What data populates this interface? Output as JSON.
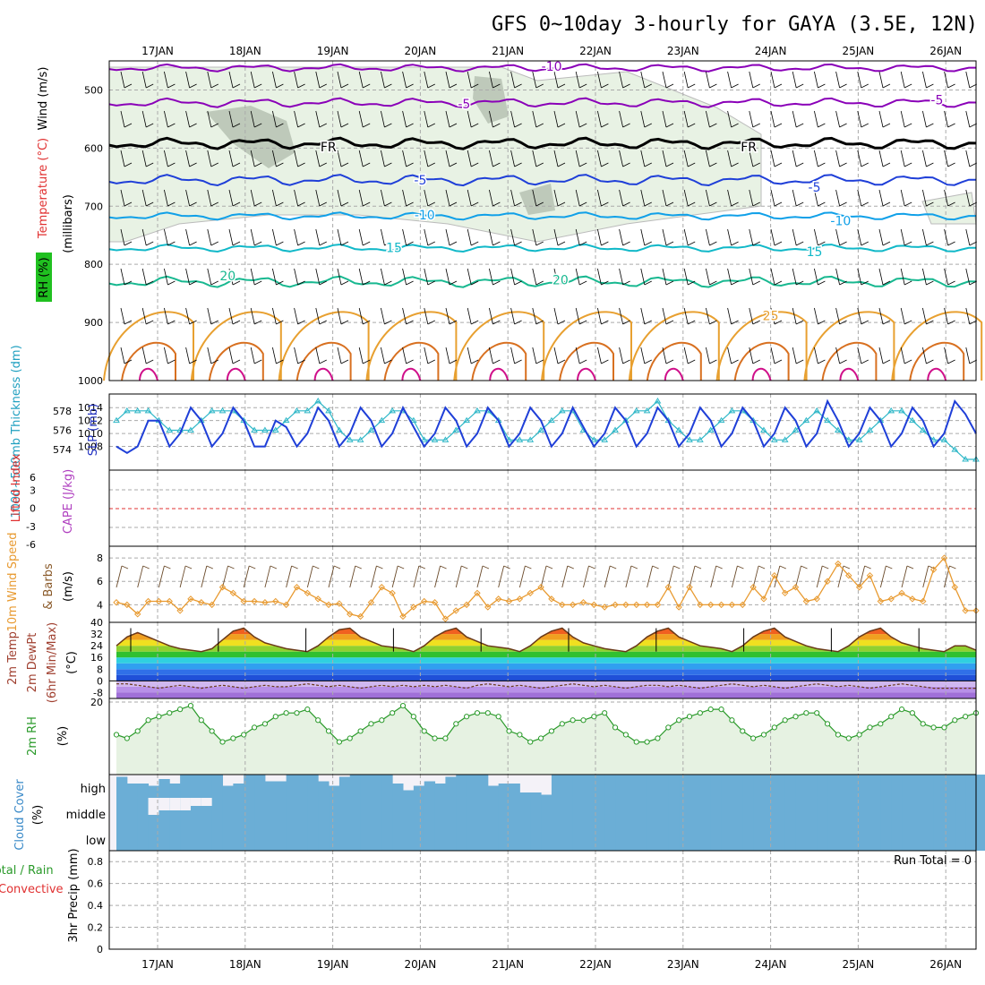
{
  "title": "GFS 0~10day 3-hourly for GAYA (3.5E, 12N)",
  "dates": [
    "17JAN",
    "18JAN",
    "19JAN",
    "20JAN",
    "21JAN",
    "22JAN",
    "23JAN",
    "24JAN",
    "25JAN",
    "26JAN"
  ],
  "colors": {
    "purple": "#8a00b8",
    "black": "#000000",
    "blue": "#1f3fd8",
    "lightblue": "#10a0e8",
    "cyan": "#10b8c8",
    "teal": "#18b890",
    "orange": "#e8a030",
    "darkorange": "#d87020",
    "magenta": "#d0108a",
    "rh_fill": "#e8f2e4",
    "rh_dark": "#9aa898",
    "slp": "#1f3fd8",
    "thick": "#30b8c8",
    "wind": "#e89a30",
    "barb": "#6a4a2a",
    "rh2m": "#2a9a2a",
    "cloud": "#6baed6",
    "grid": "#aaaaaa"
  },
  "chart_data": [
    {
      "type": "line",
      "name": "upper-air",
      "ylabel_rh": "RH (%)",
      "ylabel_temp": "Temperature (°C)",
      "ylabel_wind": "Wind (m/s)",
      "ylabel_p": "(millibars)",
      "yticks": [
        500,
        600,
        700,
        800,
        900,
        1000
      ],
      "ylim": [
        450,
        1000
      ],
      "contour_labels": [
        {
          "text": "-10",
          "x": 0.5,
          "p": 459
        },
        {
          "text": "-5",
          "x": -0.5,
          "p": 524
        },
        {
          "text": "-5",
          "x": 4.9,
          "p": 517
        },
        {
          "text": "FR",
          "x": -2.05,
          "p": 598
        },
        {
          "text": "FR",
          "x": 2.75,
          "p": 598
        },
        {
          "text": "-5",
          "x": -1.0,
          "p": 655
        },
        {
          "text": "-5",
          "x": 3.5,
          "p": 667
        },
        {
          "text": "-10",
          "x": -0.95,
          "p": 715
        },
        {
          "text": "-10",
          "x": 3.8,
          "p": 725
        },
        {
          "text": "15",
          "x": -1.3,
          "p": 771
        },
        {
          "text": "15",
          "x": 3.5,
          "p": 778
        },
        {
          "text": "20",
          "x": -3.2,
          "p": 820
        },
        {
          "text": "20",
          "x": 0.6,
          "p": 827
        },
        {
          "text": "25",
          "x": 3.0,
          "p": 888
        }
      ]
    },
    {
      "type": "line",
      "name": "slp-thickness",
      "ylabel_thick": "1000~500mb Thickness (dm)",
      "ylabel_slp": "SLP (mb)",
      "yticks_left": [
        574,
        576,
        578
      ],
      "yticks_right": [
        1008,
        1010,
        1012,
        1014
      ],
      "slp": [
        1008,
        1007,
        1008,
        1012,
        1012,
        1008,
        1010,
        1014,
        1012,
        1008,
        1010,
        1014,
        1012,
        1008,
        1008,
        1012,
        1011,
        1008,
        1010,
        1014,
        1012,
        1008,
        1010,
        1014,
        1012,
        1008,
        1010,
        1014,
        1011,
        1008,
        1010,
        1014,
        1012,
        1008,
        1010,
        1014,
        1012,
        1008,
        1010,
        1014,
        1012,
        1008,
        1010,
        1014,
        1011,
        1008,
        1010,
        1014,
        1012,
        1008,
        1010,
        1014,
        1012,
        1008,
        1010,
        1014,
        1012,
        1008,
        1010,
        1014,
        1012,
        1008,
        1010,
        1014,
        1012,
        1008,
        1010,
        1015,
        1012,
        1008,
        1010,
        1014,
        1012,
        1008,
        1010,
        1014,
        1012,
        1008,
        1010,
        1015,
        1013,
        1010
      ],
      "thick": [
        577,
        578,
        578,
        578,
        577,
        576,
        576,
        576,
        577,
        578,
        578,
        578,
        577,
        576,
        576,
        576,
        577,
        578,
        578,
        579,
        578,
        576,
        575,
        575,
        576,
        577,
        578,
        578,
        577,
        575,
        575,
        575,
        576,
        577,
        578,
        578,
        577,
        575,
        575,
        575,
        576,
        577,
        578,
        578,
        576,
        575,
        575,
        576,
        577,
        578,
        578,
        579,
        577,
        576,
        575,
        575,
        576,
        577,
        578,
        578,
        577,
        576,
        575,
        575,
        576,
        577,
        578,
        577,
        576,
        575,
        575,
        576,
        577,
        578,
        578,
        577,
        576,
        575,
        575,
        574,
        573,
        573
      ]
    },
    {
      "type": "line",
      "name": "lifted-index",
      "ylabel_li": "Lifted Index",
      "ylabel_cape": "CAPE (J/kg)",
      "yticks": [
        "6",
        "3",
        "0",
        "-3",
        "-6"
      ],
      "ylim": [
        -6,
        6
      ]
    },
    {
      "type": "line",
      "name": "wind10m",
      "ylabel": "10m Wind Speed & Barbs",
      "unit": "(m/s)",
      "yticks": [
        4,
        6,
        8
      ],
      "ylim": [
        2.5,
        9
      ],
      "values": [
        4.2,
        4.0,
        3.2,
        4.3,
        4.3,
        4.3,
        3.5,
        4.5,
        4.2,
        4.0,
        5.5,
        5.0,
        4.3,
        4.3,
        4.2,
        4.3,
        4.0,
        5.5,
        5.0,
        4.5,
        4.0,
        4.1,
        3.2,
        3.0,
        4.2,
        5.5,
        5.0,
        3.0,
        3.8,
        4.3,
        4.2,
        2.8,
        3.5,
        4.0,
        5.0,
        3.8,
        4.5,
        4.3,
        4.5,
        5.0,
        5.5,
        4.5,
        4.0,
        4.0,
        4.2,
        4.0,
        3.8,
        4.0,
        4.0,
        4.0,
        4.0,
        4.0,
        5.5,
        3.8,
        5.5,
        4.0,
        4.0,
        4.0,
        4.0,
        4.0,
        5.5,
        4.5,
        6.5,
        5.0,
        5.5,
        4.3,
        4.5,
        6.0,
        7.5,
        6.5,
        5.5,
        6.5,
        4.3,
        4.5,
        5.0,
        4.5,
        4.3,
        7.0,
        8.0,
        5.5,
        3.5,
        3.5
      ],
      "barb_range": [
        5.2,
        7.2
      ]
    },
    {
      "type": "area",
      "name": "temp2m",
      "ylabel_temp": "2m Temp",
      "ylabel_dewpt": "2m DewPt",
      "ylabel_minmax": "(6hr Min/Max)",
      "unit": "(°C)",
      "yticks": [
        40,
        32,
        24,
        16,
        8,
        0,
        -8
      ],
      "ylim": [
        -12,
        40
      ],
      "temp": [
        24,
        30,
        33,
        30,
        27,
        24,
        22,
        21,
        20,
        22,
        28,
        34,
        36,
        30,
        26,
        24,
        22,
        21,
        20,
        24,
        30,
        35,
        36,
        30,
        27,
        24,
        23,
        22,
        20,
        24,
        30,
        34,
        36,
        30,
        27,
        24,
        23,
        22,
        20,
        24,
        30,
        34,
        36,
        30,
        26,
        24,
        22,
        21,
        20,
        24,
        30,
        34,
        36,
        30,
        27,
        24,
        23,
        22,
        20,
        24,
        30,
        34,
        36,
        30,
        27,
        24,
        22,
        21,
        20,
        24,
        30,
        34,
        36,
        30,
        26,
        24,
        22,
        21,
        20,
        24,
        24,
        21
      ],
      "dew": [
        -2,
        -2,
        -3,
        -4,
        -5,
        -4,
        -3,
        -4,
        -5,
        -4,
        -3,
        -4,
        -5,
        -4,
        -3,
        -4,
        -4,
        -3,
        -2,
        -3,
        -4,
        -3,
        -4,
        -5,
        -4,
        -3,
        -4,
        -3,
        -4,
        -3,
        -4,
        -3,
        -4,
        -5,
        -3,
        -2,
        -3,
        -4,
        -3,
        -4,
        -5,
        -4,
        -3,
        -2,
        -3,
        -4,
        -3,
        -4,
        -5,
        -4,
        -3,
        -3,
        -4,
        -3,
        -4,
        -5,
        -4,
        -3,
        -2,
        -3,
        -4,
        -3,
        -4,
        -5,
        -4,
        -3,
        -2,
        -3,
        -4,
        -3,
        -4,
        -5,
        -4,
        -3,
        -2,
        -3,
        -4,
        -5,
        -5,
        -5,
        -5,
        -5
      ]
    },
    {
      "type": "line",
      "name": "rh2m",
      "ylabel": "2m RH",
      "unit": "(%)",
      "yticks": [
        20
      ],
      "ylim": [
        0,
        21
      ],
      "values": [
        11,
        10,
        12,
        15,
        16,
        17,
        18,
        19,
        15,
        12,
        9,
        10,
        11,
        13,
        14,
        16,
        17,
        17,
        18,
        15,
        12,
        9,
        10,
        12,
        14,
        15,
        17,
        19,
        16,
        12,
        10,
        10,
        14,
        16,
        17,
        17,
        16,
        12,
        11,
        9,
        10,
        12,
        14,
        15,
        15,
        16,
        17,
        13,
        11,
        9,
        9,
        10,
        13,
        15,
        16,
        17,
        18,
        18,
        15,
        12,
        10,
        11,
        13,
        15,
        16,
        17,
        17,
        14,
        11,
        10,
        11,
        13,
        14,
        16,
        18,
        17,
        14,
        13,
        13,
        15,
        16,
        17
      ]
    },
    {
      "type": "area",
      "name": "cloud",
      "ylabel": "Cloud Cover",
      "unit": "(%)",
      "levels": [
        "high",
        "middle",
        "low"
      ],
      "high": [
        0.9,
        0.6,
        0.6,
        0.5,
        0.8,
        0.6,
        1,
        1,
        1,
        1,
        0.5,
        0.6,
        1,
        1,
        0.7,
        0.7,
        1,
        1,
        1,
        0.7,
        0.5,
        0.9,
        1,
        1,
        1,
        1,
        0.6,
        0.3,
        0.5,
        0.7,
        0.6,
        0.9,
        1,
        1,
        1,
        0.5,
        0.6,
        0.6,
        0.2,
        0.2,
        0.1,
        1,
        1,
        1,
        1,
        1,
        1,
        1,
        1,
        1,
        1,
        1,
        1,
        1,
        1,
        1,
        1,
        1,
        1,
        1,
        1,
        1,
        1,
        1,
        1,
        1,
        1,
        1,
        1,
        1,
        1,
        1,
        1,
        1,
        1,
        1,
        1,
        1,
        1,
        1,
        1,
        1
      ],
      "high_end": [
        1,
        1,
        1,
        1,
        1,
        1,
        1,
        1,
        1,
        1,
        1,
        1,
        1,
        1,
        1,
        1,
        1,
        1,
        1,
        1,
        1,
        1,
        1,
        1,
        1,
        1,
        1,
        1,
        1,
        1,
        1,
        1,
        1,
        1,
        1,
        1,
        1,
        1,
        1,
        1,
        1,
        1,
        1,
        1,
        1,
        1,
        1,
        1,
        1,
        1,
        1,
        1,
        1,
        1,
        1,
        1,
        1,
        1,
        1,
        1,
        1,
        1,
        1,
        1,
        1,
        1,
        0,
        0,
        0.2,
        0.2,
        0.2,
        0.15,
        0.2,
        0,
        0.2,
        0,
        0,
        0,
        0,
        0.2,
        0,
        0
      ],
      "middle_gap": [
        0,
        0,
        0,
        0.2,
        0.15,
        0.15,
        0.15,
        0.1,
        0.1,
        0,
        0,
        0,
        0,
        0,
        0,
        0,
        0,
        0,
        0,
        0,
        0,
        0,
        0,
        0,
        0,
        0,
        0,
        0,
        0,
        0,
        0,
        0,
        0,
        0,
        0,
        0,
        0,
        0,
        0,
        0,
        0,
        0,
        0,
        0,
        0,
        0,
        0,
        0,
        0,
        0,
        0,
        0,
        0,
        0,
        0,
        0,
        0,
        0,
        0,
        0,
        0,
        0,
        0,
        0,
        0,
        0,
        0,
        0,
        0,
        0,
        0,
        0,
        0,
        0,
        0,
        0,
        0,
        0,
        0,
        0,
        0,
        0
      ]
    },
    {
      "type": "bar",
      "name": "precip",
      "ylabel_total": "Total / Rain",
      "ylabel_conv": "Convective",
      "ylabel": "3hr Precip (mm)",
      "yticks": [
        "0",
        "0.2",
        "0.4",
        "0.6",
        "0.8"
      ],
      "ylim": [
        0,
        0.9
      ],
      "run_total": "Run Total = 0"
    }
  ]
}
